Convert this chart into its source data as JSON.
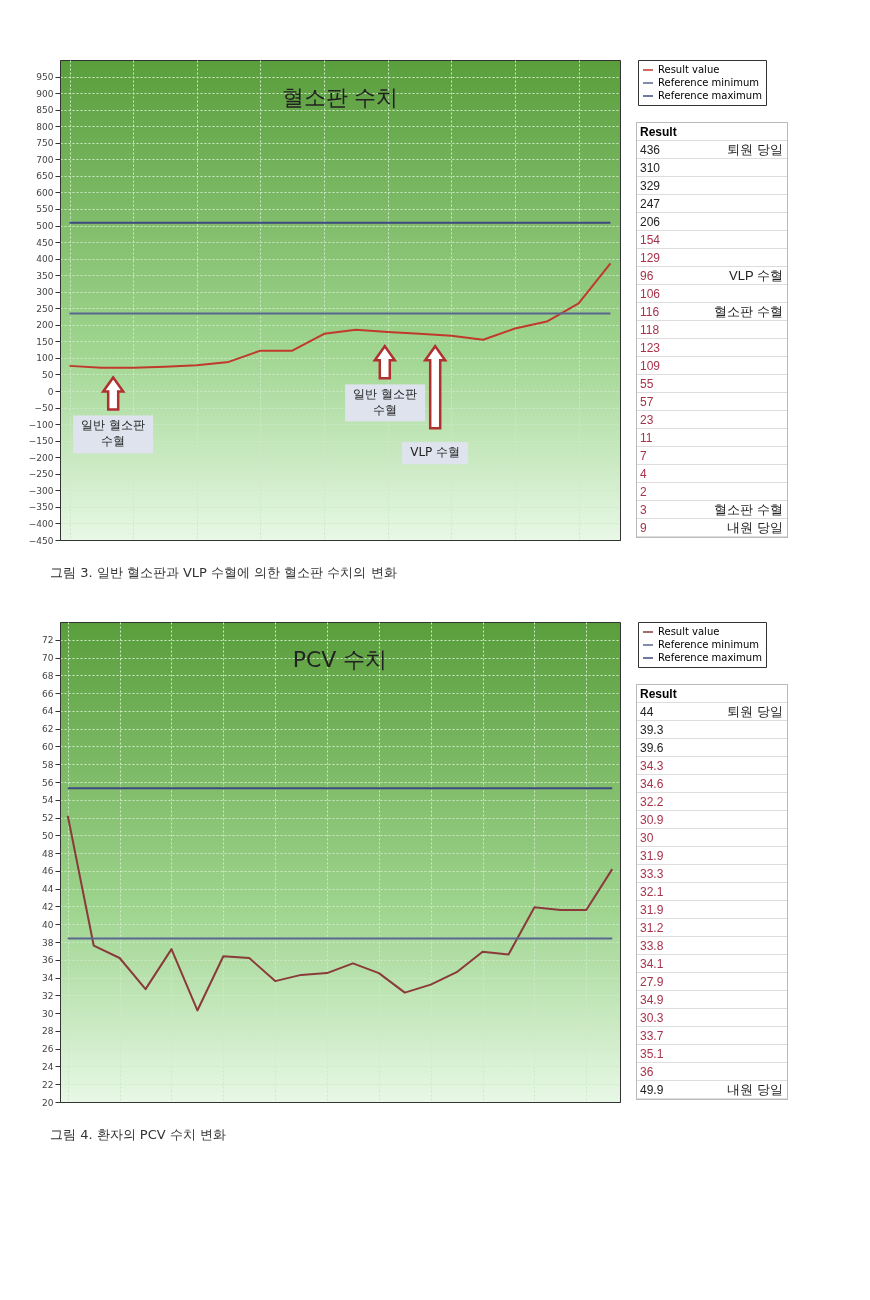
{
  "chart_data": [
    {
      "type": "line",
      "title": "혈소판 수치",
      "categories": [
        null,
        null,
        null,
        null,
        null,
        null,
        null,
        null,
        null,
        null,
        null,
        null,
        null,
        null,
        null,
        null,
        null,
        null
      ],
      "series": [
        {
          "name": "Result value",
          "color": "#c0392b",
          "values": [
            76,
            70,
            70,
            73,
            78,
            88,
            122,
            122,
            173,
            185,
            178,
            173,
            167,
            155,
            189,
            210,
            265,
            386
          ]
        },
        {
          "name": "Reference minimum",
          "color": "#5a6690",
          "values": [
            234,
            234,
            234,
            234,
            234,
            234,
            234,
            234,
            234,
            234,
            234,
            234,
            234,
            234,
            234,
            234,
            234,
            234
          ]
        },
        {
          "name": "Reference maximum",
          "color": "#3c4a80",
          "values": [
            508,
            508,
            508,
            508,
            508,
            508,
            508,
            508,
            508,
            508,
            508,
            508,
            508,
            508,
            508,
            508,
            508,
            508
          ]
        }
      ],
      "ylim": [
        -450,
        1000
      ],
      "yticks": [
        -450,
        -400,
        -350,
        -300,
        -250,
        -200,
        -150,
        -100,
        -50,
        0,
        50,
        100,
        150,
        200,
        250,
        300,
        350,
        400,
        450,
        500,
        550,
        600,
        650,
        700,
        750,
        800,
        850,
        900,
        950
      ],
      "grid": true,
      "legend": "top right",
      "tick_labels": "y",
      "annotations": [
        "일반 혈소판\n수혈",
        "일반 혈소판\n수혈",
        "VLP 수혈",
        "그림 3. 일반 혈소판과 VLP 수혈에 의한 혈소판 수치의 변화"
      ]
    },
    {
      "type": "other",
      "title": "Result",
      "y_categories": [
        "436",
        "310",
        "329",
        "247",
        "206",
        "154",
        "129",
        "96",
        "106",
        "116",
        "118",
        "123",
        "109",
        "55",
        "57",
        "23",
        "11",
        "7",
        "4",
        "2",
        "3",
        "9"
      ],
      "y2_categories": [
        "퇴원 당일",
        null,
        null,
        null,
        null,
        null,
        null,
        "VLP 수혈",
        null,
        "혈소판 수혈",
        null,
        null,
        null,
        null,
        null,
        null,
        null,
        null,
        null,
        null,
        "혈소판 수혈",
        "내원 당일"
      ],
      "colors": [
        "#222222",
        "#222222",
        "#222222",
        "#222222",
        "#222222",
        "#a8324a",
        "#a8324a",
        "#a8324a",
        "#a8324a",
        "#a8324a",
        "#a8324a",
        "#a8324a",
        "#a8324a",
        "#a8324a",
        "#a8324a",
        "#a8324a",
        "#a8324a",
        "#a8324a",
        "#a8324a",
        "#a8324a",
        "#a8324a",
        "#a8324a"
      ]
    },
    {
      "type": "line",
      "title": "PCV 수치",
      "categories": [
        null,
        null,
        null,
        null,
        null,
        null,
        null,
        null,
        null,
        null,
        null,
        null,
        null,
        null,
        null,
        null,
        null,
        null,
        null,
        null,
        null,
        null
      ],
      "series": [
        {
          "name": "Result value",
          "color": "#8b3a3a",
          "values": [
            52.2,
            37.6,
            36.2,
            32.7,
            37.2,
            30.3,
            36.4,
            36.2,
            33.6,
            34.3,
            34.5,
            35.6,
            34.5,
            32.3,
            33.2,
            34.6,
            36.9,
            36.6,
            41.9,
            41.6,
            41.6,
            46.2
          ]
        },
        {
          "name": "Reference minimum",
          "color": "#5a6690",
          "values": [
            38.4,
            38.4,
            38.4,
            38.4,
            38.4,
            38.4,
            38.4,
            38.4,
            38.4,
            38.4,
            38.4,
            38.4,
            38.4,
            38.4,
            38.4,
            38.4,
            38.4,
            38.4,
            38.4,
            38.4,
            38.4,
            38.4
          ]
        },
        {
          "name": "Reference maximum",
          "color": "#3c4a80",
          "values": [
            55.3,
            55.3,
            55.3,
            55.3,
            55.3,
            55.3,
            55.3,
            55.3,
            55.3,
            55.3,
            55.3,
            55.3,
            55.3,
            55.3,
            55.3,
            55.3,
            55.3,
            55.3,
            55.3,
            55.3,
            55.3,
            55.3
          ]
        }
      ],
      "ylim": [
        20,
        74
      ],
      "yticks": [
        20,
        22,
        24,
        26,
        28,
        30,
        32,
        34,
        36,
        38,
        40,
        42,
        44,
        46,
        48,
        50,
        52,
        54,
        56,
        58,
        60,
        62,
        64,
        66,
        68,
        70,
        72
      ],
      "grid": true,
      "legend": "top right",
      "tick_labels": "y",
      "annotations": [
        "그림 4. 환자의 PCV 수치 변화"
      ]
    },
    {
      "type": "other",
      "title": "Result",
      "y_categories": [
        "44",
        "39.3",
        "39.6",
        "34.3",
        "34.6",
        "32.2",
        "30.9",
        "30",
        "31.9",
        "33.3",
        "32.1",
        "31.9",
        "31.2",
        "33.8",
        "34.1",
        "27.9",
        "34.9",
        "30.3",
        "33.7",
        "35.1",
        "36",
        "49.9"
      ],
      "y2_categories": [
        "퇴원 당일",
        null,
        null,
        null,
        null,
        null,
        null,
        null,
        null,
        null,
        null,
        null,
        null,
        null,
        null,
        null,
        null,
        null,
        null,
        null,
        null,
        "내원 당일"
      ],
      "colors": [
        "#222222",
        "#222222",
        "#222222",
        "#a8324a",
        "#a8324a",
        "#a8324a",
        "#a8324a",
        "#a8324a",
        "#a8324a",
        "#a8324a",
        "#a8324a",
        "#a8324a",
        "#a8324a",
        "#a8324a",
        "#a8324a",
        "#a8324a",
        "#a8324a",
        "#a8324a",
        "#a8324a",
        "#a8324a",
        "#a8324a",
        "#222222"
      ]
    }
  ]
}
